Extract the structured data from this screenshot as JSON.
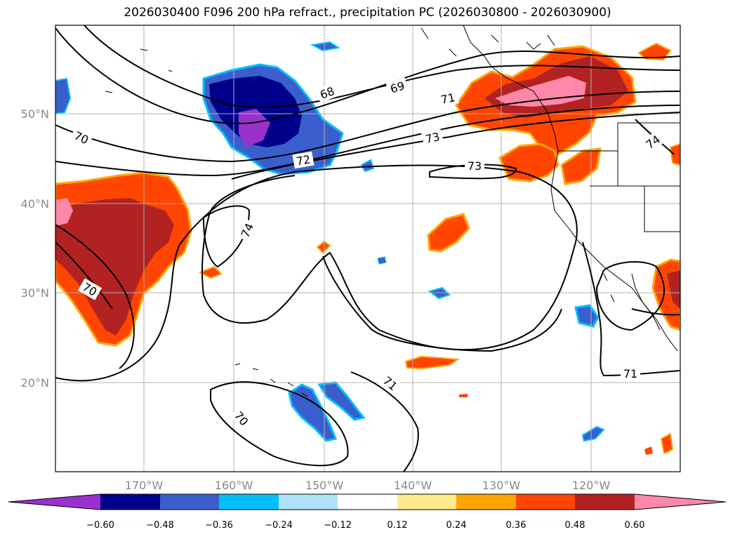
{
  "title": "2026030400 F096 200 hPa refract., precipitation PC (2026030800 - 2026030900)",
  "map": {
    "lon_ticks": [
      "170°W",
      "160°W",
      "150°W",
      "140°W",
      "130°W",
      "120°W"
    ],
    "lat_ticks": [
      "50°N",
      "40°N",
      "30°N",
      "20°N"
    ],
    "contour_labels": [
      "68",
      "69",
      "71",
      "73",
      "73",
      "74",
      "72",
      "70",
      "70",
      "74",
      "71",
      "70",
      "71"
    ],
    "colors": {
      "border": "#000000",
      "grid": "#b0b0b0",
      "contour": "#000000"
    }
  },
  "colorbar": {
    "levels": [
      "−0.60",
      "−0.48",
      "−0.36",
      "−0.24",
      "−0.12",
      "0.12",
      "0.24",
      "0.36",
      "0.48",
      "0.60"
    ],
    "colors": [
      "#9932cc",
      "#00008b",
      "#3a5fcd",
      "#00bfff",
      "#afe2fa",
      "#ffffff",
      "#ffe98a",
      "#ffa500",
      "#ff4500",
      "#b22222",
      "#ff88aa"
    ]
  }
}
